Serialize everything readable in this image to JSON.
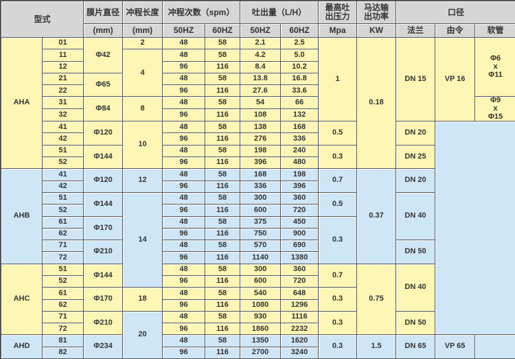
{
  "colors": {
    "y": "#fdf6b4",
    "b": "#cfe6f7",
    "header": "#d6d6d6"
  },
  "header": {
    "row1": [
      {
        "t": "型式",
        "rs": 2,
        "cs": 2
      },
      {
        "t": "膜片直径",
        "rs": 1,
        "cs": 1
      },
      {
        "t": "冲程长度",
        "rs": 1,
        "cs": 1
      },
      {
        "t": "冲程次数（spm）",
        "rs": 1,
        "cs": 2
      },
      {
        "t": "吐出量（L/H）",
        "rs": 1,
        "cs": 2
      },
      {
        "t": "最高吐\n出压力",
        "rs": 1,
        "cs": 1
      },
      {
        "t": "马达输\n出功率",
        "rs": 1,
        "cs": 1
      },
      {
        "t": "口径",
        "rs": 1,
        "cs": 3
      }
    ],
    "row2": [
      "(mm)",
      "(mm)",
      "50HZ",
      "60HZ",
      "50HZ",
      "60HZ",
      "Mpa",
      "KW",
      "法兰",
      "由令",
      "软管"
    ]
  },
  "rows": [
    [
      [
        "AHA",
        11,
        1,
        "y"
      ],
      [
        "01",
        1,
        1,
        "y"
      ],
      [
        "Φ42",
        3,
        1,
        "y"
      ],
      [
        "2",
        1,
        1,
        "y"
      ],
      [
        "48",
        1,
        1,
        "y"
      ],
      [
        "58",
        1,
        1,
        "y"
      ],
      [
        "2.1",
        1,
        1,
        "y"
      ],
      [
        "2.5",
        1,
        1,
        "y"
      ],
      [
        "1",
        7,
        1,
        "y"
      ],
      [
        "0.18",
        11,
        1,
        "y"
      ],
      [
        "DN 15",
        7,
        1,
        "y"
      ],
      [
        "VP 16",
        7,
        1,
        "y"
      ],
      [
        "Φ6\nx\nΦ11",
        5,
        1,
        "y"
      ]
    ],
    [
      [
        "11",
        1,
        1,
        "y"
      ],
      [
        "4",
        4,
        1,
        "y"
      ],
      [
        "48",
        1,
        1,
        "y"
      ],
      [
        "58",
        1,
        1,
        "y"
      ],
      [
        "4.2",
        1,
        1,
        "y"
      ],
      [
        "5.0",
        1,
        1,
        "y"
      ]
    ],
    [
      [
        "12",
        1,
        1,
        "y"
      ],
      [
        "96",
        1,
        1,
        "y"
      ],
      [
        "116",
        1,
        1,
        "y"
      ],
      [
        "8.4",
        1,
        1,
        "y"
      ],
      [
        "10.2",
        1,
        1,
        "y"
      ]
    ],
    [
      [
        "21",
        1,
        1,
        "y"
      ],
      [
        "Φ65",
        2,
        1,
        "y"
      ],
      [
        "48",
        1,
        1,
        "y"
      ],
      [
        "58",
        1,
        1,
        "y"
      ],
      [
        "13.8",
        1,
        1,
        "y"
      ],
      [
        "16.8",
        1,
        1,
        "y"
      ]
    ],
    [
      [
        "22",
        1,
        1,
        "y"
      ],
      [
        "96",
        1,
        1,
        "y"
      ],
      [
        "116",
        1,
        1,
        "y"
      ],
      [
        "27.6",
        1,
        1,
        "y"
      ],
      [
        "33.6",
        1,
        1,
        "y"
      ]
    ],
    [
      [
        "31",
        1,
        1,
        "y"
      ],
      [
        "Φ84",
        2,
        1,
        "y"
      ],
      [
        "8",
        2,
        1,
        "y"
      ],
      [
        "48",
        1,
        1,
        "y"
      ],
      [
        "58",
        1,
        1,
        "y"
      ],
      [
        "54",
        1,
        1,
        "y"
      ],
      [
        "66",
        1,
        1,
        "y"
      ],
      [
        "Φ9\nx\nΦ15",
        2,
        1,
        "y"
      ]
    ],
    [
      [
        "32",
        1,
        1,
        "y"
      ],
      [
        "96",
        1,
        1,
        "y"
      ],
      [
        "116",
        1,
        1,
        "y"
      ],
      [
        "108",
        1,
        1,
        "y"
      ],
      [
        "132",
        1,
        1,
        "y"
      ]
    ],
    [
      [
        "41",
        1,
        1,
        "y"
      ],
      [
        "Φ120",
        2,
        1,
        "y"
      ],
      [
        "10",
        4,
        1,
        "y"
      ],
      [
        "48",
        1,
        1,
        "y"
      ],
      [
        "58",
        1,
        1,
        "y"
      ],
      [
        "138",
        1,
        1,
        "y"
      ],
      [
        "168",
        1,
        1,
        "y"
      ],
      [
        "0.5",
        2,
        1,
        "y"
      ],
      [
        "DN 20",
        2,
        1,
        "y"
      ],
      [
        "",
        18,
        2,
        "b"
      ]
    ],
    [
      [
        "42",
        1,
        1,
        "y"
      ],
      [
        "96",
        1,
        1,
        "y"
      ],
      [
        "116",
        1,
        1,
        "y"
      ],
      [
        "276",
        1,
        1,
        "y"
      ],
      [
        "336",
        1,
        1,
        "y"
      ]
    ],
    [
      [
        "51",
        1,
        1,
        "y"
      ],
      [
        "Φ144",
        2,
        1,
        "y"
      ],
      [
        "48",
        1,
        1,
        "y"
      ],
      [
        "58",
        1,
        1,
        "y"
      ],
      [
        "198",
        1,
        1,
        "y"
      ],
      [
        "240",
        1,
        1,
        "y"
      ],
      [
        "0.3",
        2,
        1,
        "y"
      ],
      [
        "DN 25",
        2,
        1,
        "y"
      ]
    ],
    [
      [
        "52",
        1,
        1,
        "y"
      ],
      [
        "96",
        1,
        1,
        "y"
      ],
      [
        "116",
        1,
        1,
        "y"
      ],
      [
        "396",
        1,
        1,
        "y"
      ],
      [
        "480",
        1,
        1,
        "y"
      ]
    ],
    [
      [
        "AHB",
        8,
        1,
        "b"
      ],
      [
        "41",
        1,
        1,
        "b"
      ],
      [
        "Φ120",
        2,
        1,
        "b"
      ],
      [
        "12",
        2,
        1,
        "b"
      ],
      [
        "48",
        1,
        1,
        "b"
      ],
      [
        "58",
        1,
        1,
        "b"
      ],
      [
        "168",
        1,
        1,
        "b"
      ],
      [
        "198",
        1,
        1,
        "b"
      ],
      [
        "0.7",
        2,
        1,
        "b"
      ],
      [
        "0.37",
        8,
        1,
        "b"
      ],
      [
        "DN 20",
        2,
        1,
        "b"
      ]
    ],
    [
      [
        "42",
        1,
        1,
        "b"
      ],
      [
        "96",
        1,
        1,
        "b"
      ],
      [
        "116",
        1,
        1,
        "b"
      ],
      [
        "336",
        1,
        1,
        "b"
      ],
      [
        "396",
        1,
        1,
        "b"
      ]
    ],
    [
      [
        "51",
        1,
        1,
        "b"
      ],
      [
        "Φ144",
        2,
        1,
        "b"
      ],
      [
        "14",
        8,
        1,
        "b"
      ],
      [
        "48",
        1,
        1,
        "b"
      ],
      [
        "58",
        1,
        1,
        "b"
      ],
      [
        "300",
        1,
        1,
        "b"
      ],
      [
        "360",
        1,
        1,
        "b"
      ],
      [
        "0.5",
        2,
        1,
        "b"
      ],
      [
        "DN 40",
        4,
        1,
        "b"
      ]
    ],
    [
      [
        "52",
        1,
        1,
        "b"
      ],
      [
        "96",
        1,
        1,
        "b"
      ],
      [
        "116",
        1,
        1,
        "b"
      ],
      [
        "600",
        1,
        1,
        "b"
      ],
      [
        "720",
        1,
        1,
        "b"
      ]
    ],
    [
      [
        "61",
        1,
        1,
        "b"
      ],
      [
        "Φ170",
        2,
        1,
        "b"
      ],
      [
        "48",
        1,
        1,
        "b"
      ],
      [
        "58",
        1,
        1,
        "b"
      ],
      [
        "375",
        1,
        1,
        "b"
      ],
      [
        "450",
        1,
        1,
        "b"
      ],
      [
        "0.3",
        4,
        1,
        "b"
      ]
    ],
    [
      [
        "62",
        1,
        1,
        "b"
      ],
      [
        "96",
        1,
        1,
        "b"
      ],
      [
        "116",
        1,
        1,
        "b"
      ],
      [
        "750",
        1,
        1,
        "b"
      ],
      [
        "900",
        1,
        1,
        "b"
      ]
    ],
    [
      [
        "71",
        1,
        1,
        "b"
      ],
      [
        "Φ210",
        2,
        1,
        "b"
      ],
      [
        "48",
        1,
        1,
        "b"
      ],
      [
        "58",
        1,
        1,
        "b"
      ],
      [
        "570",
        1,
        1,
        "b"
      ],
      [
        "690",
        1,
        1,
        "b"
      ],
      [
        "DN 50",
        2,
        1,
        "b"
      ]
    ],
    [
      [
        "72",
        1,
        1,
        "b"
      ],
      [
        "96",
        1,
        1,
        "b"
      ],
      [
        "116",
        1,
        1,
        "b"
      ],
      [
        "1140",
        1,
        1,
        "b"
      ],
      [
        "1380",
        1,
        1,
        "b"
      ]
    ],
    [
      [
        "AHC",
        6,
        1,
        "y"
      ],
      [
        "51",
        1,
        1,
        "y"
      ],
      [
        "Φ144",
        2,
        1,
        "y"
      ],
      [
        "48",
        1,
        1,
        "y"
      ],
      [
        "58",
        1,
        1,
        "y"
      ],
      [
        "300",
        1,
        1,
        "y"
      ],
      [
        "360",
        1,
        1,
        "y"
      ],
      [
        "0.7",
        2,
        1,
        "y"
      ],
      [
        "0.75",
        6,
        1,
        "y"
      ],
      [
        "DN 40",
        4,
        1,
        "y"
      ]
    ],
    [
      [
        "52",
        1,
        1,
        "y"
      ],
      [
        "96",
        1,
        1,
        "y"
      ],
      [
        "116",
        1,
        1,
        "y"
      ],
      [
        "600",
        1,
        1,
        "y"
      ],
      [
        "720",
        1,
        1,
        "y"
      ]
    ],
    [
      [
        "61",
        1,
        1,
        "y"
      ],
      [
        "Φ170",
        2,
        1,
        "y"
      ],
      [
        "18",
        2,
        1,
        "y"
      ],
      [
        "48",
        1,
        1,
        "y"
      ],
      [
        "58",
        1,
        1,
        "y"
      ],
      [
        "540",
        1,
        1,
        "y"
      ],
      [
        "648",
        1,
        1,
        "y"
      ],
      [
        "0.3",
        2,
        1,
        "y"
      ]
    ],
    [
      [
        "62",
        1,
        1,
        "y"
      ],
      [
        "96",
        1,
        1,
        "y"
      ],
      [
        "116",
        1,
        1,
        "y"
      ],
      [
        "1080",
        1,
        1,
        "y"
      ],
      [
        "1296",
        1,
        1,
        "y"
      ]
    ],
    [
      [
        "71",
        1,
        1,
        "y"
      ],
      [
        "Φ210",
        2,
        1,
        "y"
      ],
      [
        "20",
        4,
        1,
        "b"
      ],
      [
        "48",
        1,
        1,
        "y"
      ],
      [
        "58",
        1,
        1,
        "y"
      ],
      [
        "930",
        1,
        1,
        "y"
      ],
      [
        "1116",
        1,
        1,
        "y"
      ],
      [
        "0.3",
        2,
        1,
        "y"
      ],
      [
        "DN 50",
        2,
        1,
        "y"
      ]
    ],
    [
      [
        "72",
        1,
        1,
        "y"
      ],
      [
        "96",
        1,
        1,
        "y"
      ],
      [
        "116",
        1,
        1,
        "y"
      ],
      [
        "1860",
        1,
        1,
        "y"
      ],
      [
        "2232",
        1,
        1,
        "y"
      ]
    ],
    [
      [
        "AHD",
        2,
        1,
        "b"
      ],
      [
        "81",
        1,
        1,
        "b"
      ],
      [
        "Φ234",
        2,
        1,
        "b"
      ],
      [
        "48",
        1,
        1,
        "b"
      ],
      [
        "58",
        1,
        1,
        "b"
      ],
      [
        "1350",
        1,
        1,
        "b"
      ],
      [
        "1620",
        1,
        1,
        "b"
      ],
      [
        "0.3",
        2,
        1,
        "b"
      ],
      [
        "1.5",
        2,
        1,
        "b"
      ],
      [
        "DN 65",
        2,
        1,
        "b"
      ],
      [
        "VP 65",
        2,
        1,
        "b"
      ],
      [
        "",
        2,
        1,
        "b"
      ]
    ],
    [
      [
        "82",
        1,
        1,
        "b"
      ],
      [
        "96",
        1,
        1,
        "b"
      ],
      [
        "116",
        1,
        1,
        "b"
      ],
      [
        "2700",
        1,
        1,
        "b"
      ],
      [
        "3240",
        1,
        1,
        "b"
      ]
    ]
  ]
}
